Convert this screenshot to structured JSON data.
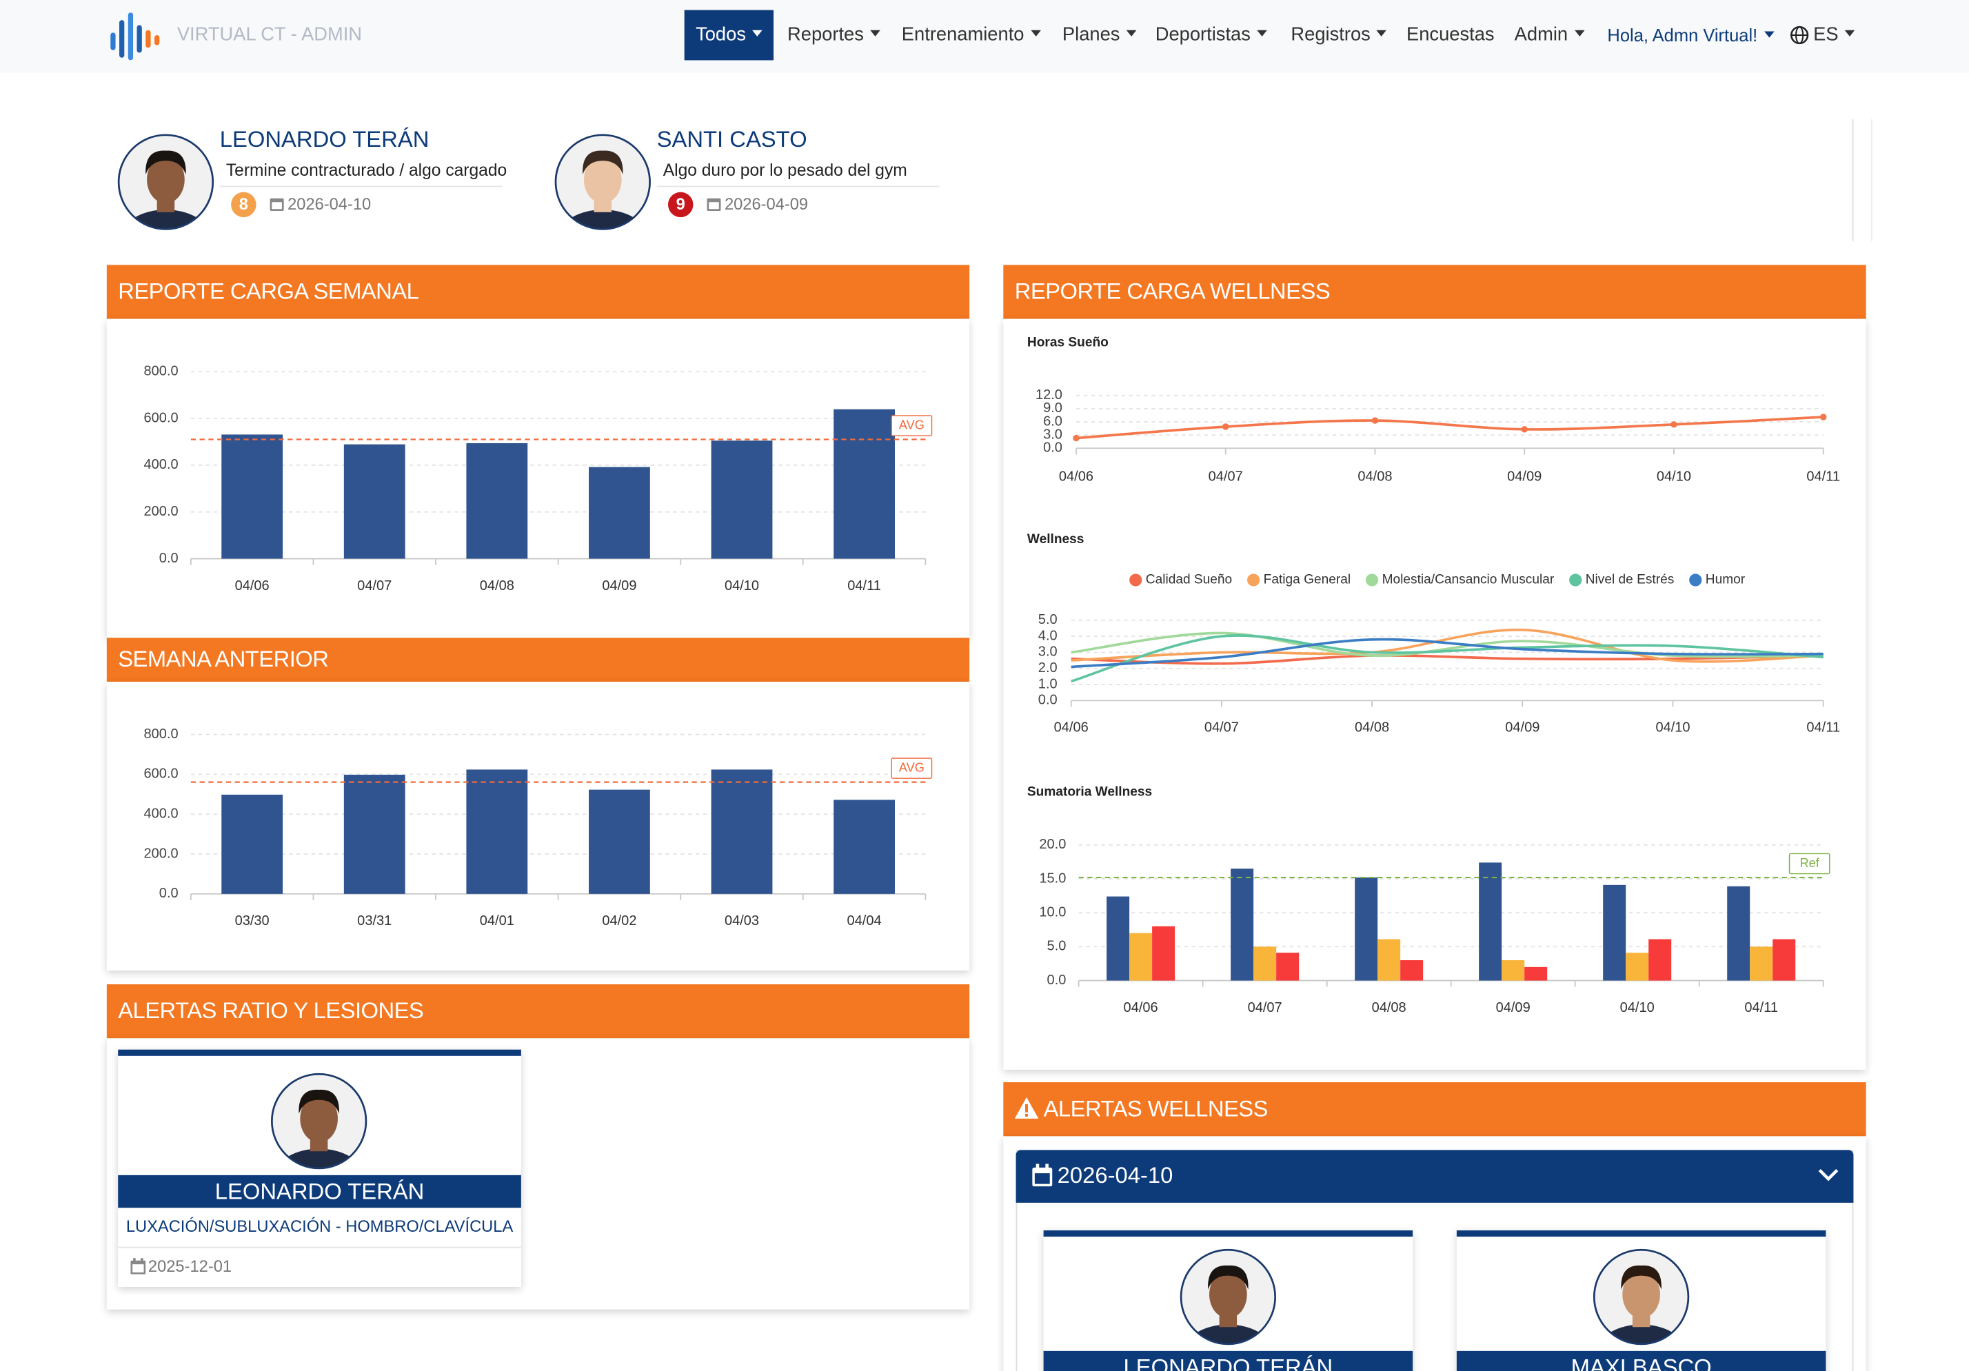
{
  "nav": {
    "brand": "VIRTUAL CT - ADMIN",
    "menu": [
      {
        "label": "Todos",
        "active": true,
        "dropdown": true
      },
      {
        "label": "Reportes",
        "dropdown": true
      },
      {
        "label": "Entrenamiento",
        "dropdown": true
      },
      {
        "label": "Planes",
        "dropdown": true
      },
      {
        "label": "Deportistas",
        "dropdown": true
      },
      {
        "label": "Registros",
        "dropdown": true
      },
      {
        "label": "Encuestas"
      },
      {
        "label": "Admin",
        "dropdown": true
      }
    ],
    "user": "Hola, Admn Virtual!",
    "language": "ES"
  },
  "comments": [
    {
      "name": "LEONARDO TERÁN",
      "comment": "Termine contracturado / algo cargado",
      "score": 8,
      "score_color": "#f5a04a",
      "date": "2026-04-10"
    },
    {
      "name": "SANTI CASTO",
      "comment": "Algo duro por lo pesado del gym",
      "score": 9,
      "score_color": "#c8161d",
      "date": "2026-04-09"
    }
  ],
  "weekly_load": {
    "title": "REPORTE CARGA SEMANAL",
    "chart_data": {
      "type": "bar",
      "categories": [
        "04/06",
        "04/07",
        "04/08",
        "04/09",
        "04/10",
        "04/11"
      ],
      "values": [
        531,
        489,
        494,
        392,
        505,
        639
      ],
      "color": "#30548f",
      "ylim": [
        0,
        800
      ],
      "yticks": [
        {
          "value": 0,
          "label": "0.0"
        },
        {
          "value": 200,
          "label": "200.0"
        },
        {
          "value": 400,
          "label": "400.0"
        },
        {
          "value": 600,
          "label": "600.0"
        },
        {
          "value": 800,
          "label": "800.0"
        }
      ],
      "grid": true,
      "ref_line": {
        "value": 510,
        "label": "AVG",
        "color": "#f26a3b"
      }
    }
  },
  "previous_week": {
    "title": "SEMANA ANTERIOR",
    "chart_data": {
      "type": "bar",
      "categories": [
        "03/30",
        "03/31",
        "04/01",
        "04/02",
        "04/03",
        "04/04"
      ],
      "values": [
        498,
        598,
        624,
        523,
        624,
        472
      ],
      "color": "#30548f",
      "ylim": [
        0,
        800
      ],
      "yticks": [
        {
          "value": 0,
          "label": "0.0"
        },
        {
          "value": 200,
          "label": "200.0"
        },
        {
          "value": 400,
          "label": "400.0"
        },
        {
          "value": 600,
          "label": "600.0"
        },
        {
          "value": 800,
          "label": "800.0"
        }
      ],
      "grid": true,
      "ref_line": {
        "value": 561,
        "label": "AVG",
        "color": "#f26a3b"
      }
    }
  },
  "injury_alerts": {
    "title": "ALERTAS RATIO Y LESIONES",
    "cards": [
      {
        "name": "LEONARDO TERÁN",
        "injury": "LUXACIÓN/SUBLUXACIÓN - HOMBRO/CLAVÍCULA",
        "date": "2025-12-01"
      }
    ]
  },
  "wellness": {
    "title": "REPORTE CARGA WELLNESS",
    "charts": [
      {
        "type": "line",
        "title": "Horas Sueño",
        "categories": [
          "04/06",
          "04/07",
          "04/08",
          "04/09",
          "04/10",
          "04/11"
        ],
        "values": [
          2.3,
          4.9,
          6.3,
          4.3,
          5.4,
          7.1
        ],
        "color": "#f4764b",
        "markers": true,
        "ylim": [
          0,
          12
        ],
        "yticks": [
          {
            "value": 0,
            "label": "0.0"
          },
          {
            "value": 3,
            "label": "3.0"
          },
          {
            "value": 6,
            "label": "6.0"
          },
          {
            "value": 9,
            "label": "9.0"
          },
          {
            "value": 12,
            "label": "12.0"
          }
        ],
        "grid": true
      },
      {
        "type": "line",
        "title": "Wellness",
        "categories": [
          "04/06",
          "04/07",
          "04/08",
          "04/09",
          "04/10",
          "04/11"
        ],
        "legend": "top",
        "series": [
          {
            "name": "Calidad Sueño",
            "color": "#f26a4b",
            "values": [
              2.6,
              2.3,
              2.8,
              2.6,
              2.6,
              2.8
            ]
          },
          {
            "name": "Fatiga General",
            "color": "#f7a35c",
            "values": [
              2.5,
              3.0,
              3.0,
              4.4,
              2.5,
              2.8
            ]
          },
          {
            "name": "Molestia/Cansancio Muscular",
            "color": "#a1d99b",
            "values": [
              3.0,
              4.2,
              2.8,
              3.7,
              2.8,
              2.8
            ]
          },
          {
            "name": "Nivel de Estrés",
            "color": "#5ec4a0",
            "values": [
              1.2,
              4.0,
              3.0,
              3.3,
              3.4,
              2.7
            ]
          },
          {
            "name": "Humor",
            "color": "#3b7dc4",
            "values": [
              2.1,
              2.7,
              3.8,
              3.2,
              2.9,
              2.9
            ]
          }
        ],
        "ylim": [
          0,
          5
        ],
        "yticks": [
          {
            "value": 0,
            "label": "0.0"
          },
          {
            "value": 1,
            "label": "1.0"
          },
          {
            "value": 2,
            "label": "2.0"
          },
          {
            "value": 3,
            "label": "3.0"
          },
          {
            "value": 4,
            "label": "4.0"
          },
          {
            "value": 5,
            "label": "5.0"
          }
        ],
        "grid": true
      },
      {
        "type": "bar",
        "title": "Sumatoria Wellness",
        "categories": [
          "04/06",
          "04/07",
          "04/08",
          "04/09",
          "04/10",
          "04/11"
        ],
        "series": [
          {
            "color": "#30548f",
            "values": [
              12.4,
              16.5,
              15.2,
              17.4,
              14.1,
              13.9
            ]
          },
          {
            "color": "#f9b43a",
            "values": [
              7.0,
              5.0,
              6.1,
              3.0,
              4.1,
              5.0
            ]
          },
          {
            "color": "#f73a3a",
            "values": [
              8.0,
              4.1,
              3.0,
              2.0,
              6.1,
              6.1
            ]
          }
        ],
        "ylim": [
          0,
          20
        ],
        "yticks": [
          {
            "value": 0,
            "label": "0.0"
          },
          {
            "value": 5,
            "label": "5.0"
          },
          {
            "value": 10,
            "label": "10.0"
          },
          {
            "value": 15,
            "label": "15.0"
          },
          {
            "value": 20,
            "label": "20.0"
          }
        ],
        "grid": true,
        "ref_line": {
          "value": 15.2,
          "label": "Ref",
          "color": "#7cb342"
        }
      }
    ]
  },
  "wellness_alerts": {
    "title": "ALERTAS WELLNESS",
    "date": "2026-04-10",
    "cards": [
      {
        "name": "LEONARDO TERÁN"
      },
      {
        "name": "MAXI BASCO"
      }
    ]
  }
}
